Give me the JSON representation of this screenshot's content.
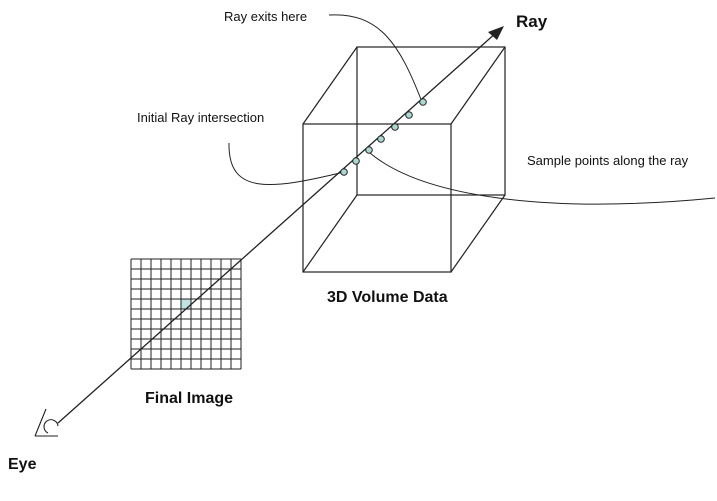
{
  "labels": {
    "ray": "Ray",
    "ray_exits": "Ray exits here",
    "initial_intersection": "Initial Ray intersection",
    "sample_points": "Sample points along the ray",
    "volume": "3D Volume Data",
    "final_image": "Final Image",
    "eye": "Eye"
  },
  "grid": {
    "rows": 11,
    "cols": 11,
    "highlight_row": 4,
    "highlight_col": 5
  },
  "colors": {
    "line": "#222222",
    "highlight_cell": "#bfe3e3",
    "sample_point": "#a9d8d0"
  },
  "icons": {
    "eye": "eye-icon",
    "arrowhead": "arrowhead-icon"
  }
}
